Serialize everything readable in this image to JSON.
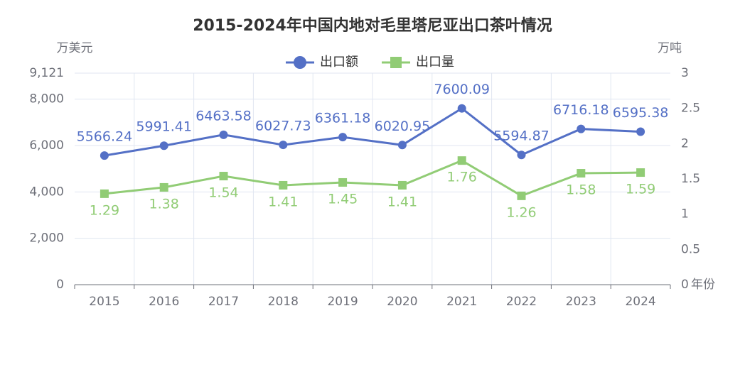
{
  "chart_data": {
    "type": "line",
    "title": "2015-2024年中国内地对毛里塔尼亚出口茶叶情况",
    "x_label": "年份",
    "y_label": "万美元",
    "y2_label": "万吨",
    "categories": [
      "2015",
      "2016",
      "2017",
      "2018",
      "2019",
      "2020",
      "2021",
      "2022",
      "2023",
      "2024"
    ],
    "series": [
      {
        "name": "出口额",
        "color": "#5470c6",
        "marker": "circle",
        "values": [
          5566.24,
          5991.41,
          6463.58,
          6027.73,
          6361.18,
          6020.95,
          7600.09,
          5594.87,
          6716.18,
          6595.38
        ]
      },
      {
        "name": "出口量",
        "color": "#91cc75",
        "marker": "square",
        "axis": "y2",
        "values": [
          1.29,
          1.38,
          1.54,
          1.41,
          1.45,
          1.41,
          1.76,
          1.26,
          1.58,
          1.59
        ]
      }
    ],
    "ylim": [
      0,
      9121
    ],
    "yticks": [
      0,
      {
        "value": 2000,
        "label": "2,000"
      },
      {
        "value": 4000,
        "label": "4,000"
      },
      {
        "value": 6000,
        "label": "6,000"
      },
      {
        "value": 8000,
        "label": "8,000"
      },
      {
        "value": 9121,
        "label": "9,121"
      }
    ],
    "y2lim": [
      0,
      3
    ],
    "y2ticks": [
      0,
      0.5,
      1,
      1.5,
      2,
      2.5,
      3
    ],
    "grid": true
  }
}
